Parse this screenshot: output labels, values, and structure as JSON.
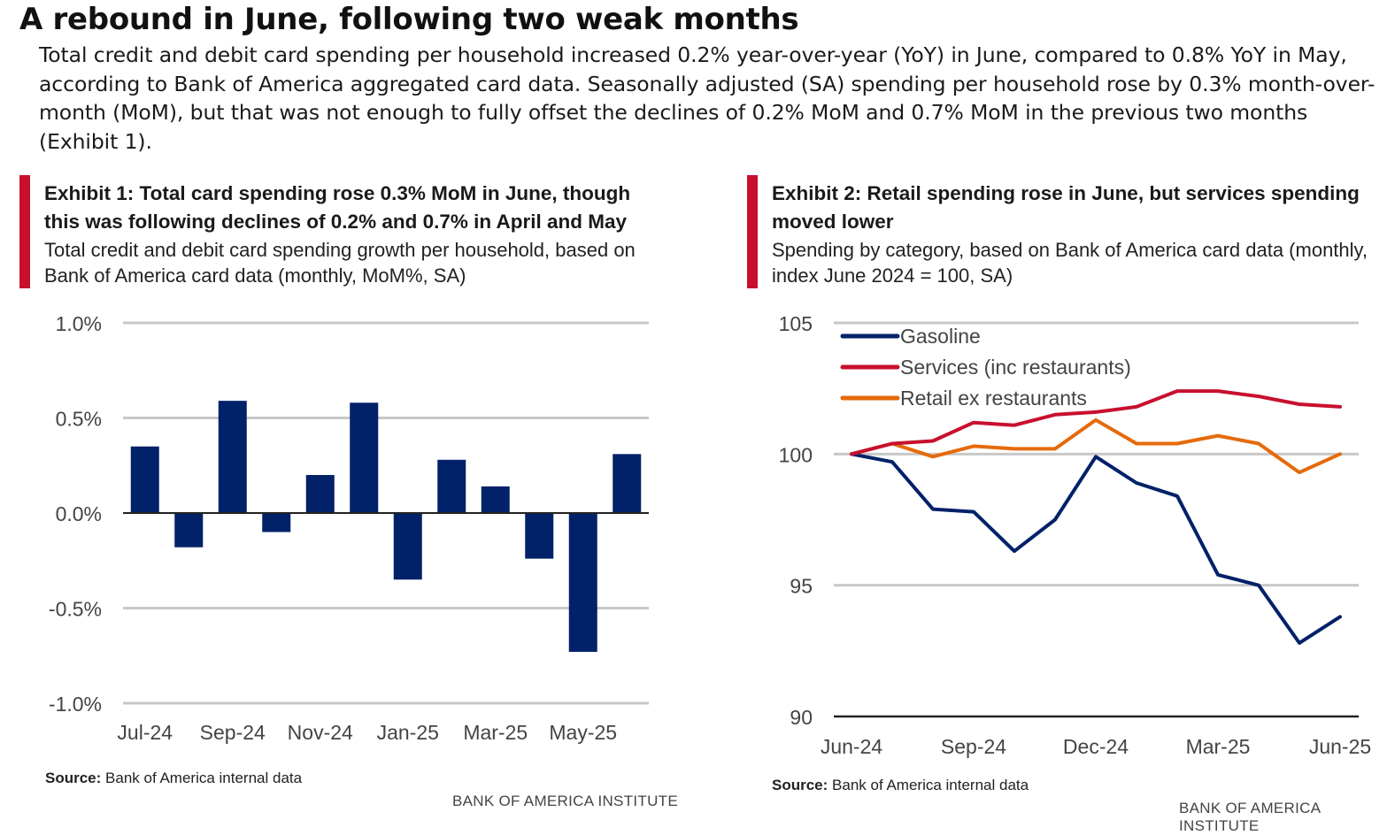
{
  "header": {
    "title": "A rebound in June, following two weak months",
    "intro": "Total credit and debit card spending per household increased 0.2% year-over-year (YoY) in June, compared to 0.8% YoY in May, according to Bank of America aggregated card data. Seasonally adjusted (SA) spending per household rose by 0.3% month-over-month (MoM), but that was not enough to fully offset the declines of 0.2% MoM and 0.7% MoM in the previous two months (Exhibit 1)."
  },
  "colors": {
    "accent_red": "#c8102e",
    "navy": "#012169",
    "services_red": "#c8102e",
    "retail_orange": "#e56a0b",
    "grid": "#c8c8c8"
  },
  "exhibits": [
    {
      "title": "Exhibit 1: Total card spending rose 0.3% MoM in June, though this was following declines of 0.2% and 0.7% in April and May",
      "subtitle": "Total credit and debit card spending growth per household, based on Bank of America card data (monthly, MoM%, SA)",
      "source_label": "Source:",
      "source_text": " Bank of America internal data",
      "brand": "BANK OF AMERICA INSTITUTE"
    },
    {
      "title": "Exhibit 2: Retail spending rose in June, but services spending moved lower",
      "subtitle": "Spending by category, based on Bank of America card data (monthly, index June 2024 = 100, SA)",
      "source_label": "Source:",
      "source_text": " Bank of America internal data",
      "brand": "BANK OF AMERICA INSTITUTE"
    }
  ],
  "chart_data": [
    {
      "type": "bar",
      "categories": [
        "Jul-24",
        "Aug-24",
        "Sep-24",
        "Oct-24",
        "Nov-24",
        "Dec-24",
        "Jan-25",
        "Feb-25",
        "Mar-25",
        "Apr-25",
        "May-25",
        "Jun-25"
      ],
      "x_tick_labels": [
        "Jul-24",
        "Sep-24",
        "Nov-24",
        "Jan-25",
        "Mar-25",
        "May-25"
      ],
      "y_tick_labels": [
        "1.0%",
        "0.5%",
        "0.0%",
        "-0.5%",
        "-1.0%"
      ],
      "y_ticks": [
        1.0,
        0.5,
        0.0,
        -0.5,
        -1.0
      ],
      "values": [
        0.35,
        -0.18,
        0.59,
        -0.1,
        0.2,
        0.58,
        -0.35,
        0.28,
        0.14,
        -0.24,
        -0.73,
        0.31
      ],
      "ylim": [
        -1.0,
        1.0
      ],
      "grid": true,
      "color": "#012169"
    },
    {
      "type": "line",
      "x": [
        "Jun-24",
        "Jul-24",
        "Aug-24",
        "Sep-24",
        "Oct-24",
        "Nov-24",
        "Dec-24",
        "Jan-25",
        "Feb-25",
        "Mar-25",
        "Apr-25",
        "May-25",
        "Jun-25"
      ],
      "x_tick_labels": [
        "Jun-24",
        "Sep-24",
        "Dec-24",
        "Mar-25",
        "Jun-25"
      ],
      "y_tick_labels": [
        "105",
        "100",
        "95",
        "90"
      ],
      "y_ticks": [
        105,
        100,
        95,
        90
      ],
      "ylim": [
        90,
        105
      ],
      "grid": true,
      "legend_position": "top-left",
      "series": [
        {
          "name": "Gasoline",
          "color": "#012169",
          "values": [
            100.0,
            99.7,
            97.9,
            97.8,
            96.3,
            97.5,
            99.9,
            98.9,
            98.4,
            95.4,
            95.0,
            92.8,
            93.8
          ]
        },
        {
          "name": "Services (inc restaurants)",
          "color": "#c8102e",
          "values": [
            100.0,
            100.4,
            100.5,
            101.2,
            101.1,
            101.5,
            101.6,
            101.8,
            102.4,
            102.4,
            102.2,
            101.9,
            101.8
          ]
        },
        {
          "name": "Retail ex restaurants",
          "color": "#e56a0b",
          "values": [
            100.0,
            100.4,
            99.9,
            100.3,
            100.2,
            100.2,
            101.3,
            100.4,
            100.4,
            100.7,
            100.4,
            99.3,
            100.0
          ]
        }
      ]
    }
  ]
}
